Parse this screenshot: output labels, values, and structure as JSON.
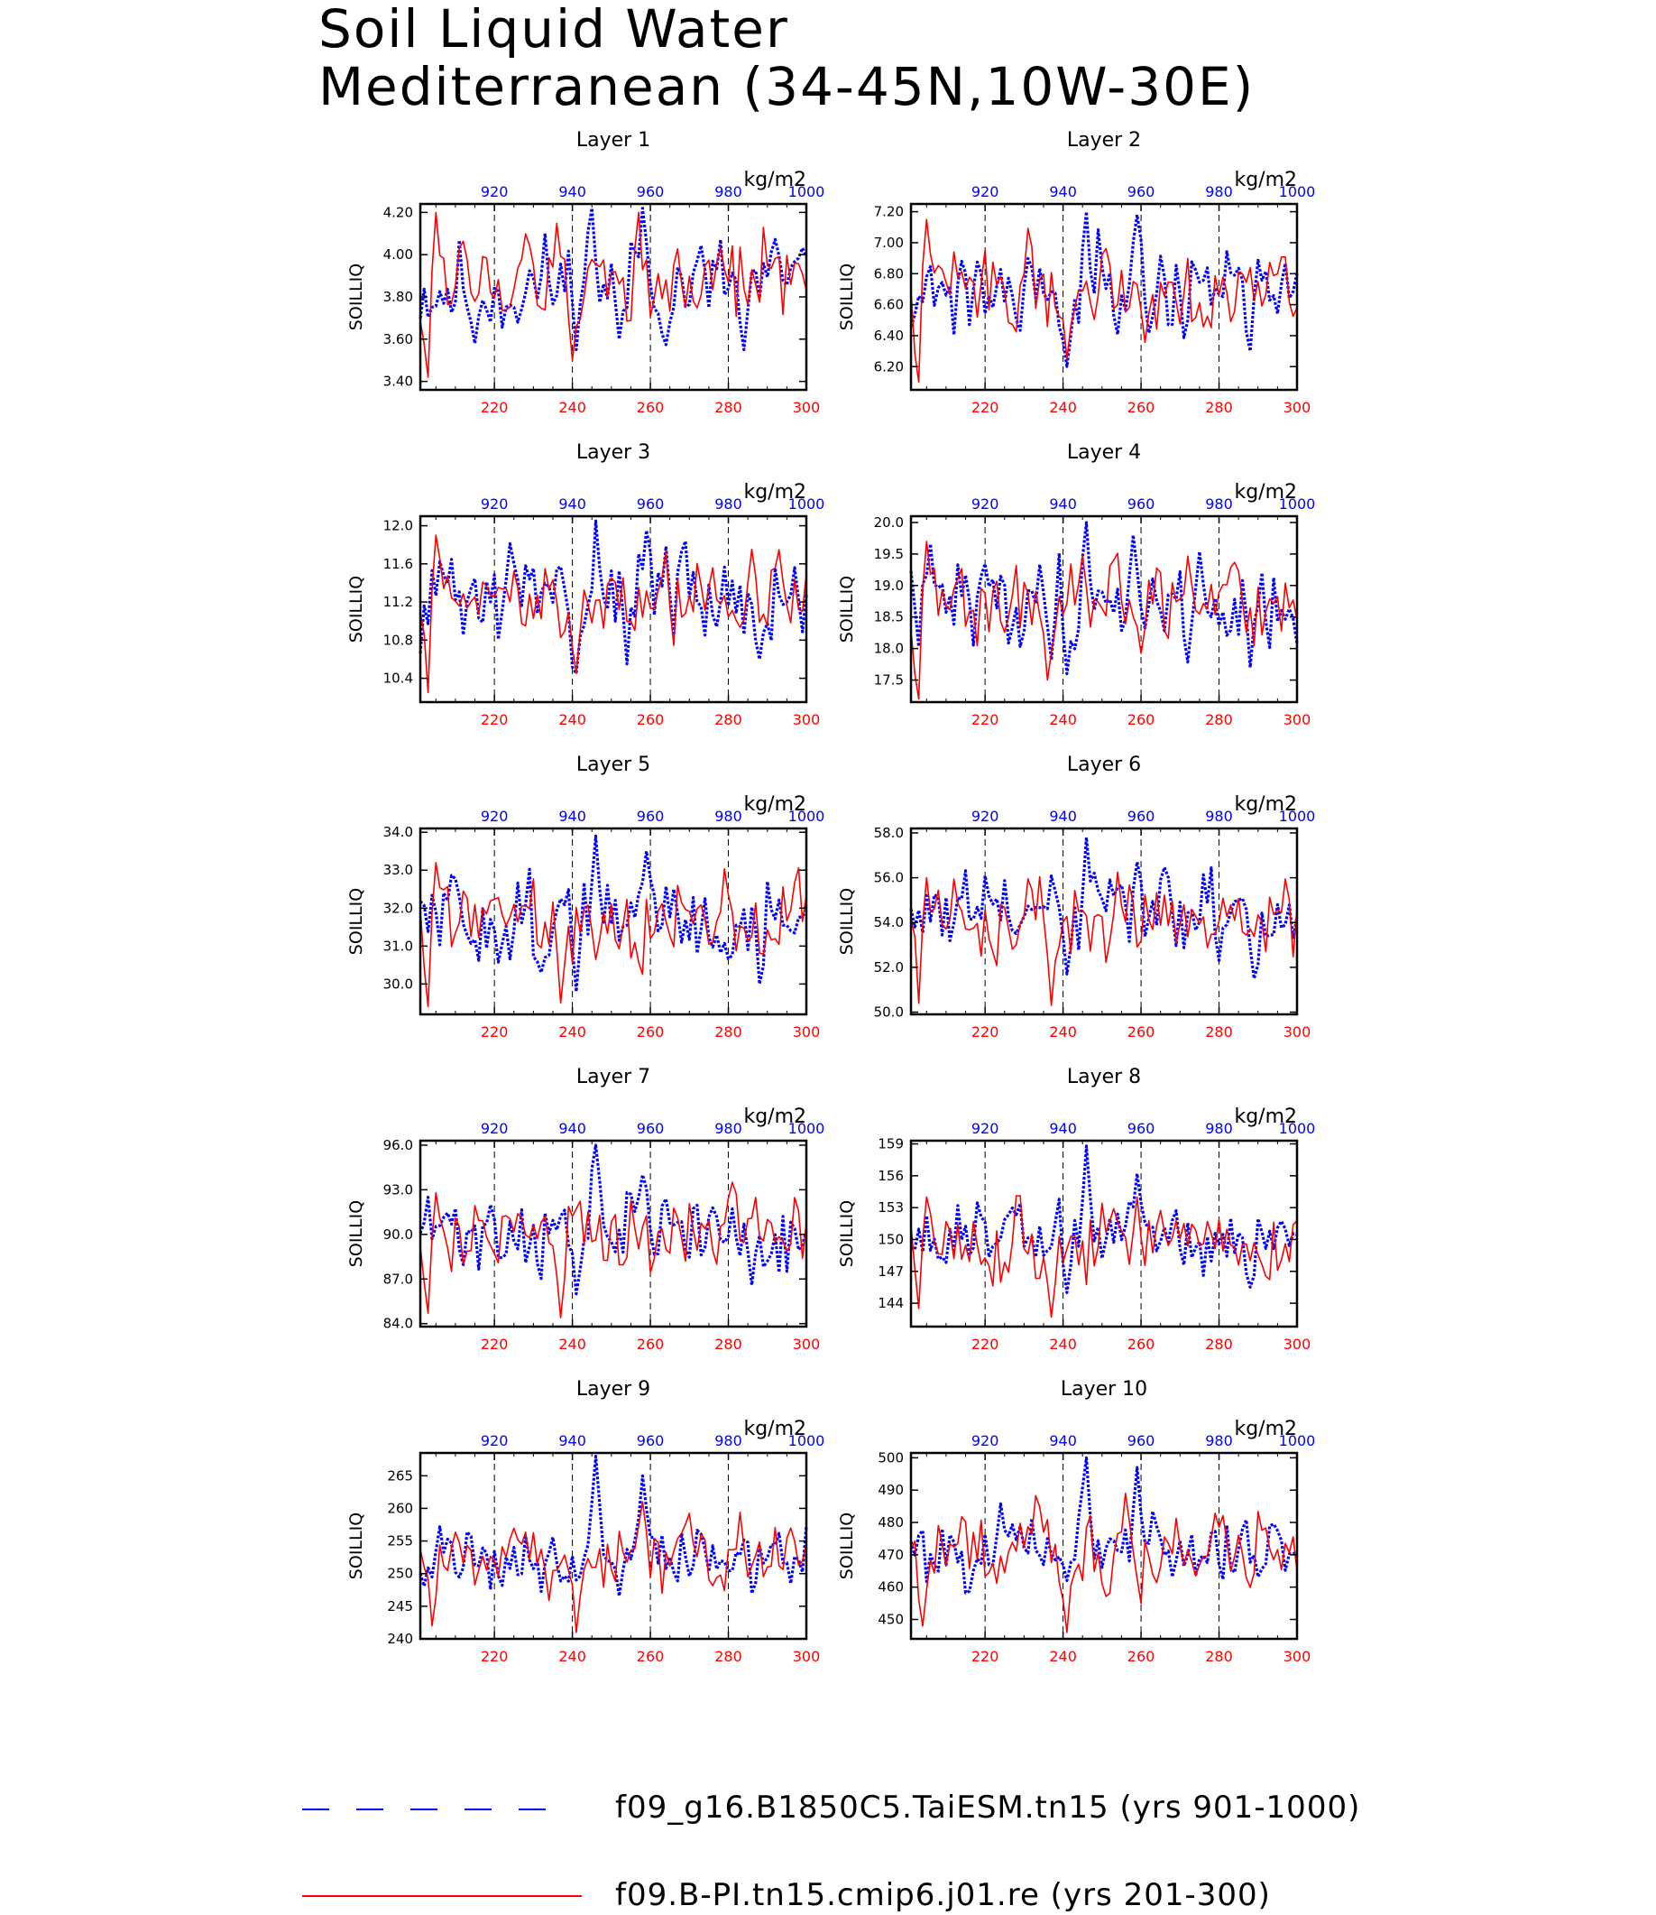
{
  "title": [
    "Soil Liquid Water",
    "Mediterranean (34-45N,10W-30E)"
  ],
  "top_axis_color": "#0000ff",
  "bottom_axis_color": "#ff0000",
  "legend": [
    {
      "label": "f09_g16.B1850C5.TaiESM.tn15 (yrs 901-1000)",
      "color": "#0000ff",
      "style": "dashed"
    },
    {
      "label": "f09.B-PI.tn15.cmip6.j01.re (yrs 201-300)",
      "color": "#ff0000",
      "style": "solid"
    }
  ],
  "chart_data": [
    {
      "type": "line",
      "title": "Layer 1",
      "ylabel": "SOILLIQ",
      "units": "kg/m2",
      "ylim": [
        3.36,
        4.24
      ],
      "yticks": [
        "3.40",
        "3.60",
        "3.80",
        "4.00",
        "4.20"
      ],
      "xlim_bottom": [
        201,
        300
      ],
      "xticks_bottom": [
        "220",
        "240",
        "260",
        "280",
        "300"
      ],
      "xlim_top": [
        901,
        1000
      ],
      "xticks_top": [
        "920",
        "940",
        "960",
        "980",
        "1000"
      ],
      "vlines": [
        220,
        240,
        260,
        280
      ],
      "series": [
        {
          "name": "f09_g16.B1850C5.TaiESM.tn15 (yrs 901-1000)",
          "color": "#0000ff",
          "style": "dashed",
          "x_range": [
            901,
            1000
          ],
          "mean": 3.85,
          "amp": 0.16,
          "low": 3.55,
          "high": 4.22,
          "peaks": [
            [
              945,
              4.22
            ],
            [
              958,
              4.22
            ],
            [
              915,
              3.58
            ],
            [
              952,
              3.6
            ],
            [
              984,
              3.55
            ]
          ],
          "seed": 11
        },
        {
          "name": "f09.B-PI.tn15.cmip6.j01.re (yrs 201-300)",
          "color": "#ff0000",
          "style": "solid",
          "x_range": [
            201,
            300
          ],
          "mean": 3.88,
          "amp": 0.15,
          "low": 3.42,
          "high": 4.2,
          "peaks": [
            [
              203,
              3.42
            ],
            [
              205,
              4.2
            ],
            [
              240,
              3.5
            ],
            [
              257,
              4.2
            ]
          ],
          "seed": 12
        }
      ]
    },
    {
      "type": "line",
      "title": "Layer 2",
      "ylabel": "SOILLIQ",
      "units": "kg/m2",
      "ylim": [
        6.05,
        7.25
      ],
      "yticks": [
        "6.20",
        "6.40",
        "6.60",
        "6.80",
        "7.00",
        "7.20"
      ],
      "xlim_bottom": [
        201,
        300
      ],
      "xticks_bottom": [
        "220",
        "240",
        "260",
        "280",
        "300"
      ],
      "xlim_top": [
        901,
        1000
      ],
      "xticks_top": [
        "920",
        "940",
        "960",
        "980",
        "1000"
      ],
      "vlines": [
        220,
        240,
        260,
        280
      ],
      "series": [
        {
          "name": "f09_g16.B1850C5.TaiESM.tn15 (yrs 901-1000)",
          "color": "#0000ff",
          "style": "dashed",
          "x_range": [
            901,
            1000
          ],
          "mean": 6.72,
          "amp": 0.2,
          "low": 6.25,
          "high": 7.2,
          "peaks": [
            [
              946,
              7.2
            ],
            [
              959,
              7.18
            ],
            [
              941,
              6.2
            ],
            [
              988,
              6.3
            ]
          ],
          "seed": 21
        },
        {
          "name": "f09.B-PI.tn15.cmip6.j01.re (yrs 201-300)",
          "color": "#ff0000",
          "style": "solid",
          "x_range": [
            201,
            300
          ],
          "mean": 6.72,
          "amp": 0.18,
          "low": 6.1,
          "high": 7.15,
          "peaks": [
            [
              203,
              6.1
            ],
            [
              205,
              7.15
            ],
            [
              241,
              6.25
            ]
          ],
          "seed": 22
        }
      ]
    },
    {
      "type": "line",
      "title": "Layer 3",
      "ylabel": "SOILLIQ",
      "units": "kg/m2",
      "ylim": [
        10.15,
        12.1
      ],
      "yticks": [
        "10.4",
        "10.8",
        "11.2",
        "11.6",
        "12.0"
      ],
      "xlim_bottom": [
        201,
        300
      ],
      "xticks_bottom": [
        "220",
        "240",
        "260",
        "280",
        "300"
      ],
      "xlim_top": [
        901,
        1000
      ],
      "xticks_top": [
        "920",
        "940",
        "960",
        "980",
        "1000"
      ],
      "vlines": [
        220,
        240,
        260,
        280
      ],
      "series": [
        {
          "name": "f09_g16.B1850C5.TaiESM.tn15 (yrs 901-1000)",
          "color": "#0000ff",
          "style": "dashed",
          "x_range": [
            901,
            1000
          ],
          "mean": 11.25,
          "amp": 0.35,
          "low": 10.55,
          "high": 12.05,
          "peaks": [
            [
              946,
              12.05
            ],
            [
              959,
              11.95
            ],
            [
              941,
              10.45
            ],
            [
              988,
              10.6
            ]
          ],
          "seed": 31
        },
        {
          "name": "f09.B-PI.tn15.cmip6.j01.re (yrs 201-300)",
          "color": "#ff0000",
          "style": "solid",
          "x_range": [
            201,
            300
          ],
          "mean": 11.25,
          "amp": 0.3,
          "low": 10.25,
          "high": 11.9,
          "peaks": [
            [
              203,
              10.25
            ],
            [
              205,
              11.9
            ],
            [
              241,
              10.45
            ]
          ],
          "seed": 32
        }
      ]
    },
    {
      "type": "line",
      "title": "Layer 4",
      "ylabel": "SOILLIQ",
      "units": "kg/m2",
      "ylim": [
        17.15,
        20.1
      ],
      "yticks": [
        "17.5",
        "18.0",
        "18.5",
        "19.0",
        "19.5",
        "20.0"
      ],
      "xlim_bottom": [
        201,
        300
      ],
      "xticks_bottom": [
        "220",
        "240",
        "260",
        "280",
        "300"
      ],
      "xlim_top": [
        901,
        1000
      ],
      "xticks_top": [
        "920",
        "940",
        "960",
        "980",
        "1000"
      ],
      "vlines": [
        220,
        240,
        260,
        280
      ],
      "series": [
        {
          "name": "f09_g16.B1850C5.TaiESM.tn15 (yrs 901-1000)",
          "color": "#0000ff",
          "style": "dashed",
          "x_range": [
            901,
            1000
          ],
          "mean": 18.75,
          "amp": 0.5,
          "low": 17.7,
          "high": 20.0,
          "peaks": [
            [
              946,
              20.0
            ],
            [
              958,
              19.8
            ],
            [
              941,
              17.6
            ],
            [
              988,
              17.7
            ]
          ],
          "seed": 41
        },
        {
          "name": "f09.B-PI.tn15.cmip6.j01.re (yrs 201-300)",
          "color": "#ff0000",
          "style": "solid",
          "x_range": [
            201,
            300
          ],
          "mean": 18.7,
          "amp": 0.45,
          "low": 17.2,
          "high": 19.7,
          "peaks": [
            [
              203,
              17.2
            ],
            [
              205,
              19.7
            ],
            [
              236,
              17.5
            ]
          ],
          "seed": 42
        }
      ]
    },
    {
      "type": "line",
      "title": "Layer 5",
      "ylabel": "SOILLIQ",
      "units": "kg/m2",
      "ylim": [
        29.2,
        34.1
      ],
      "yticks": [
        "30.0",
        "31.0",
        "32.0",
        "33.0",
        "34.0"
      ],
      "xlim_bottom": [
        201,
        300
      ],
      "xticks_bottom": [
        "220",
        "240",
        "260",
        "280",
        "300"
      ],
      "xlim_top": [
        901,
        1000
      ],
      "xticks_top": [
        "920",
        "940",
        "960",
        "980",
        "1000"
      ],
      "vlines": [
        220,
        240,
        260,
        280
      ],
      "series": [
        {
          "name": "f09_g16.B1850C5.TaiESM.tn15 (yrs 901-1000)",
          "color": "#0000ff",
          "style": "dashed",
          "x_range": [
            901,
            1000
          ],
          "mean": 31.7,
          "amp": 0.8,
          "low": 30.0,
          "high": 33.9,
          "peaks": [
            [
              946,
              33.9
            ],
            [
              959,
              33.5
            ],
            [
              941,
              29.8
            ],
            [
              988,
              30.0
            ]
          ],
          "seed": 51
        },
        {
          "name": "f09.B-PI.tn15.cmip6.j01.re (yrs 201-300)",
          "color": "#ff0000",
          "style": "solid",
          "x_range": [
            201,
            300
          ],
          "mean": 31.8,
          "amp": 0.7,
          "low": 29.4,
          "high": 33.3,
          "peaks": [
            [
              203,
              29.4
            ],
            [
              205,
              33.2
            ],
            [
              237,
              29.5
            ]
          ],
          "seed": 52
        }
      ]
    },
    {
      "type": "line",
      "title": "Layer 6",
      "ylabel": "SOILLIQ",
      "units": "kg/m2",
      "ylim": [
        49.9,
        58.2
      ],
      "yticks": [
        "50.0",
        "52.0",
        "54.0",
        "56.0",
        "58.0"
      ],
      "xlim_bottom": [
        201,
        300
      ],
      "xticks_bottom": [
        "220",
        "240",
        "260",
        "280",
        "300"
      ],
      "xlim_top": [
        901,
        1000
      ],
      "xticks_top": [
        "920",
        "940",
        "960",
        "980",
        "1000"
      ],
      "vlines": [
        220,
        240,
        260,
        280
      ],
      "series": [
        {
          "name": "f09_g16.B1850C5.TaiESM.tn15 (yrs 901-1000)",
          "color": "#0000ff",
          "style": "dashed",
          "x_range": [
            901,
            1000
          ],
          "mean": 54.3,
          "amp": 1.3,
          "low": 51.5,
          "high": 57.8,
          "peaks": [
            [
              946,
              57.8
            ],
            [
              959,
              56.7
            ],
            [
              941,
              51.7
            ],
            [
              989,
              51.5
            ]
          ],
          "seed": 61
        },
        {
          "name": "f09.B-PI.tn15.cmip6.j01.re (yrs 201-300)",
          "color": "#ff0000",
          "style": "solid",
          "x_range": [
            201,
            300
          ],
          "mean": 54.3,
          "amp": 1.2,
          "low": 50.3,
          "high": 56.8,
          "peaks": [
            [
              203,
              50.4
            ],
            [
              205,
              56.0
            ],
            [
              237,
              50.3
            ]
          ],
          "seed": 62
        }
      ]
    },
    {
      "type": "line",
      "title": "Layer 7",
      "ylabel": "SOILLIQ",
      "units": "kg/m2",
      "ylim": [
        83.8,
        96.3
      ],
      "yticks": [
        "84.0",
        "87.0",
        "90.0",
        "93.0",
        "96.0"
      ],
      "xlim_bottom": [
        201,
        300
      ],
      "xticks_bottom": [
        "220",
        "240",
        "260",
        "280",
        "300"
      ],
      "xlim_top": [
        901,
        1000
      ],
      "xticks_top": [
        "920",
        "940",
        "960",
        "980",
        "1000"
      ],
      "vlines": [
        220,
        240,
        260,
        280
      ],
      "series": [
        {
          "name": "f09_g16.B1850C5.TaiESM.tn15 (yrs 901-1000)",
          "color": "#0000ff",
          "style": "dashed",
          "x_range": [
            901,
            1000
          ],
          "mean": 90.3,
          "amp": 1.8,
          "low": 86.5,
          "high": 96.0,
          "peaks": [
            [
              946,
              96.0
            ],
            [
              958,
              94.0
            ],
            [
              941,
              86.0
            ],
            [
              986,
              86.6
            ]
          ],
          "seed": 71
        },
        {
          "name": "f09.B-PI.tn15.cmip6.j01.re (yrs 201-300)",
          "color": "#ff0000",
          "style": "solid",
          "x_range": [
            201,
            300
          ],
          "mean": 90.0,
          "amp": 1.8,
          "low": 84.5,
          "high": 93.5,
          "peaks": [
            [
              203,
              84.7
            ],
            [
              205,
              92.8
            ],
            [
              237,
              84.4
            ]
          ],
          "seed": 72
        }
      ]
    },
    {
      "type": "line",
      "title": "Layer 8",
      "ylabel": "SOILLIQ",
      "units": "kg/m2",
      "ylim": [
        141.8,
        159.3
      ],
      "yticks": [
        "144",
        "147",
        "150",
        "153",
        "156",
        "159"
      ],
      "xlim_bottom": [
        201,
        300
      ],
      "xticks_bottom": [
        "220",
        "240",
        "260",
        "280",
        "300"
      ],
      "xlim_top": [
        901,
        1000
      ],
      "xticks_top": [
        "920",
        "940",
        "960",
        "980",
        "1000"
      ],
      "vlines": [
        220,
        240,
        260,
        280
      ],
      "series": [
        {
          "name": "f09_g16.B1850C5.TaiESM.tn15 (yrs 901-1000)",
          "color": "#0000ff",
          "style": "dashed",
          "x_range": [
            901,
            1000
          ],
          "mean": 150.3,
          "amp": 2.2,
          "low": 145.5,
          "high": 158.8,
          "peaks": [
            [
              946,
              158.8
            ],
            [
              959,
              156.2
            ],
            [
              941,
              145.0
            ],
            [
              988,
              145.5
            ]
          ],
          "seed": 81
        },
        {
          "name": "f09.B-PI.tn15.cmip6.j01.re (yrs 201-300)",
          "color": "#ff0000",
          "style": "solid",
          "x_range": [
            201,
            300
          ],
          "mean": 149.8,
          "amp": 2.4,
          "low": 143.3,
          "high": 155.0,
          "peaks": [
            [
              203,
              143.5
            ],
            [
              205,
              154.0
            ],
            [
              237,
              142.7
            ],
            [
              259,
              154.0
            ]
          ],
          "seed": 82
        }
      ]
    },
    {
      "type": "line",
      "title": "Layer 9",
      "ylabel": "SOILLIQ",
      "units": "kg/m2",
      "ylim": [
        240,
        268.5
      ],
      "yticks": [
        "240",
        "245",
        "250",
        "255",
        "260",
        "265"
      ],
      "xlim_bottom": [
        201,
        300
      ],
      "xticks_bottom": [
        "220",
        "240",
        "260",
        "280",
        "300"
      ],
      "xlim_top": [
        901,
        1000
      ],
      "xticks_top": [
        "920",
        "940",
        "960",
        "980",
        "1000"
      ],
      "vlines": [
        220,
        240,
        260,
        280
      ],
      "series": [
        {
          "name": "f09_g16.B1850C5.TaiESM.tn15 (yrs 901-1000)",
          "color": "#0000ff",
          "style": "dashed",
          "x_range": [
            901,
            1000
          ],
          "mean": 253.0,
          "amp": 3.5,
          "low": 246.0,
          "high": 268.0,
          "peaks": [
            [
              946,
              268.0
            ],
            [
              958,
              265.0
            ],
            [
              941,
              249.0
            ]
          ],
          "seed": 91
        },
        {
          "name": "f09.B-PI.tn15.cmip6.j01.re (yrs 201-300)",
          "color": "#ff0000",
          "style": "solid",
          "x_range": [
            201,
            300
          ],
          "mean": 252.5,
          "amp": 4.0,
          "low": 242.0,
          "high": 261.0,
          "peaks": [
            [
              204,
              242.0
            ],
            [
              241,
              241.0
            ],
            [
              258,
              261.0
            ]
          ],
          "seed": 92
        }
      ]
    },
    {
      "type": "line",
      "title": "Layer 10",
      "ylabel": "SOILLIQ",
      "units": "kg/m2",
      "ylim": [
        444,
        501.5
      ],
      "yticks": [
        "450",
        "460",
        "470",
        "480",
        "490",
        "500"
      ],
      "xlim_bottom": [
        201,
        300
      ],
      "xticks_bottom": [
        "220",
        "240",
        "260",
        "280",
        "300"
      ],
      "xlim_top": [
        901,
        1000
      ],
      "xticks_top": [
        "920",
        "940",
        "960",
        "980",
        "1000"
      ],
      "vlines": [
        220,
        240,
        260,
        280
      ],
      "series": [
        {
          "name": "f09_g16.B1850C5.TaiESM.tn15 (yrs 901-1000)",
          "color": "#0000ff",
          "style": "dashed",
          "x_range": [
            901,
            1000
          ],
          "mean": 472.0,
          "amp": 7.0,
          "low": 458.0,
          "high": 500.0,
          "peaks": [
            [
              946,
              500.0
            ],
            [
              959,
              497.0
            ],
            [
              941,
              462.0
            ]
          ],
          "seed": 101
        },
        {
          "name": "f09.B-PI.tn15.cmip6.j01.re (yrs 201-300)",
          "color": "#ff0000",
          "style": "solid",
          "x_range": [
            201,
            300
          ],
          "mean": 472.0,
          "amp": 8.0,
          "low": 448.0,
          "high": 489.0,
          "peaks": [
            [
              204,
              448.0
            ],
            [
              241,
              446.0
            ],
            [
              256,
              489.0
            ]
          ],
          "seed": 102
        }
      ]
    }
  ]
}
